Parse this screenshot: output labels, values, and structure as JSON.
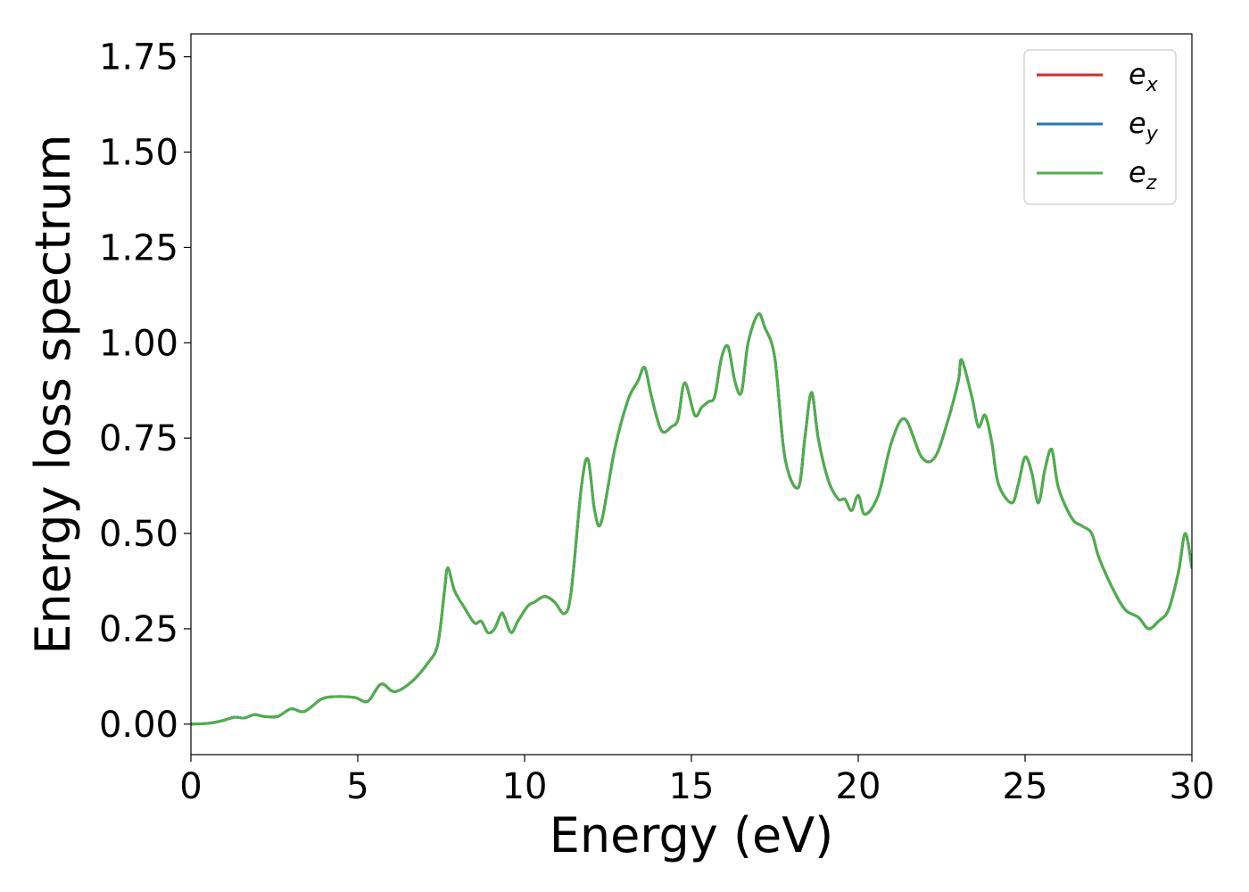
{
  "chart_data": {
    "type": "line",
    "xlabel": "Energy (eV)",
    "ylabel": "Energy loss spectrum",
    "xlim": [
      0,
      30
    ],
    "ylim": [
      -0.08,
      1.81
    ],
    "xticks": [
      0,
      5,
      10,
      15,
      20,
      25,
      30
    ],
    "xtick_labels": [
      "0",
      "5",
      "10",
      "15",
      "20",
      "25",
      "30"
    ],
    "yticks": [
      0,
      0.25,
      0.5,
      0.75,
      1.0,
      1.25,
      1.5,
      1.75
    ],
    "ytick_labels": [
      "0.00",
      "0.25",
      "0.50",
      "0.75",
      "1.00",
      "1.25",
      "1.50",
      "1.75"
    ],
    "grid": false,
    "legend_position": "top-right",
    "legend": [
      {
        "base": "e",
        "sub": "x",
        "color": "#d62728"
      },
      {
        "base": "e",
        "sub": "y",
        "color": "#1f77b4"
      },
      {
        "base": "e",
        "sub": "z",
        "color": "#4daf4a"
      }
    ],
    "x": [
      0,
      0.5,
      0.9,
      1.3,
      1.6,
      1.9,
      2.2,
      2.6,
      3.0,
      3.4,
      3.9,
      4.3,
      4.9,
      5.3,
      5.7,
      6.1,
      6.6,
      7.1,
      7.4,
      7.6,
      7.7,
      7.9,
      8.2,
      8.5,
      8.7,
      8.9,
      9.1,
      9.3,
      9.4,
      9.6,
      9.8,
      10.1,
      10.3,
      10.6,
      10.9,
      11.2,
      11.4,
      11.7,
      11.9,
      12.1,
      12.3,
      12.7,
      13.1,
      13.4,
      13.6,
      13.8,
      14.1,
      14.4,
      14.6,
      14.8,
      15.1,
      15.3,
      15.5,
      15.7,
      15.9,
      16.1,
      16.3,
      16.5,
      16.7,
      17.0,
      17.2,
      17.5,
      17.8,
      18.2,
      18.4,
      18.6,
      18.8,
      19.1,
      19.4,
      19.6,
      19.8,
      20.0,
      20.2,
      20.6,
      21.0,
      21.4,
      21.9,
      22.3,
      22.7,
      23.0,
      23.1,
      23.4,
      23.6,
      23.8,
      24.0,
      24.2,
      24.6,
      24.8,
      25.0,
      25.2,
      25.4,
      25.6,
      25.8,
      26.0,
      26.4,
      26.7,
      27.0,
      27.2,
      27.6,
      28.0,
      28.4,
      28.7,
      29.0,
      29.3,
      29.6,
      29.8,
      30.0
    ],
    "series": [
      {
        "name": "e_x",
        "color": "#d62728",
        "values": [
          0,
          0.002,
          0.008,
          0.018,
          0.016,
          0.025,
          0.02,
          0.02,
          0.04,
          0.033,
          0.065,
          0.072,
          0.07,
          0.06,
          0.105,
          0.085,
          0.11,
          0.16,
          0.21,
          0.35,
          0.41,
          0.35,
          0.305,
          0.265,
          0.27,
          0.24,
          0.25,
          0.29,
          0.28,
          0.24,
          0.27,
          0.31,
          0.32,
          0.335,
          0.32,
          0.29,
          0.35,
          0.62,
          0.695,
          0.56,
          0.53,
          0.72,
          0.85,
          0.9,
          0.935,
          0.86,
          0.77,
          0.78,
          0.8,
          0.895,
          0.81,
          0.83,
          0.845,
          0.86,
          0.96,
          0.99,
          0.9,
          0.87,
          1.0,
          1.075,
          1.04,
          0.96,
          0.7,
          0.62,
          0.75,
          0.87,
          0.75,
          0.64,
          0.59,
          0.59,
          0.56,
          0.6,
          0.55,
          0.6,
          0.74,
          0.8,
          0.7,
          0.7,
          0.8,
          0.9,
          0.955,
          0.86,
          0.78,
          0.81,
          0.74,
          0.63,
          0.58,
          0.63,
          0.7,
          0.66,
          0.58,
          0.67,
          0.72,
          0.62,
          0.54,
          0.52,
          0.5,
          0.44,
          0.36,
          0.3,
          0.28,
          0.25,
          0.27,
          0.3,
          0.4,
          0.5,
          0.41
        ]
      },
      {
        "name": "e_y",
        "color": "#1f77b4",
        "values": [
          0,
          0.002,
          0.008,
          0.018,
          0.016,
          0.025,
          0.02,
          0.02,
          0.04,
          0.033,
          0.065,
          0.072,
          0.07,
          0.06,
          0.105,
          0.085,
          0.11,
          0.16,
          0.21,
          0.35,
          0.41,
          0.35,
          0.305,
          0.265,
          0.27,
          0.24,
          0.25,
          0.29,
          0.28,
          0.24,
          0.27,
          0.31,
          0.32,
          0.335,
          0.32,
          0.29,
          0.35,
          0.62,
          0.695,
          0.56,
          0.53,
          0.72,
          0.85,
          0.9,
          0.935,
          0.86,
          0.77,
          0.78,
          0.8,
          0.895,
          0.81,
          0.83,
          0.845,
          0.86,
          0.96,
          0.99,
          0.9,
          0.87,
          1.0,
          1.075,
          1.04,
          0.96,
          0.7,
          0.62,
          0.75,
          0.87,
          0.75,
          0.64,
          0.59,
          0.59,
          0.56,
          0.6,
          0.55,
          0.6,
          0.74,
          0.8,
          0.7,
          0.7,
          0.8,
          0.9,
          0.955,
          0.86,
          0.78,
          0.81,
          0.74,
          0.63,
          0.58,
          0.63,
          0.7,
          0.66,
          0.58,
          0.67,
          0.72,
          0.62,
          0.54,
          0.52,
          0.5,
          0.44,
          0.36,
          0.3,
          0.28,
          0.25,
          0.27,
          0.3,
          0.4,
          0.5,
          0.41
        ]
      },
      {
        "name": "e_z",
        "color": "#4daf4a",
        "values": [
          0,
          0.002,
          0.008,
          0.018,
          0.016,
          0.025,
          0.02,
          0.02,
          0.04,
          0.033,
          0.065,
          0.072,
          0.07,
          0.06,
          0.105,
          0.085,
          0.11,
          0.16,
          0.21,
          0.35,
          0.41,
          0.35,
          0.305,
          0.265,
          0.27,
          0.24,
          0.25,
          0.29,
          0.28,
          0.24,
          0.27,
          0.31,
          0.32,
          0.335,
          0.32,
          0.29,
          0.35,
          0.62,
          0.695,
          0.56,
          0.53,
          0.72,
          0.85,
          0.9,
          0.935,
          0.86,
          0.77,
          0.78,
          0.8,
          0.895,
          0.81,
          0.83,
          0.845,
          0.86,
          0.96,
          0.99,
          0.9,
          0.87,
          1.0,
          1.075,
          1.04,
          0.96,
          0.7,
          0.62,
          0.75,
          0.87,
          0.75,
          0.64,
          0.59,
          0.59,
          0.56,
          0.6,
          0.55,
          0.6,
          0.74,
          0.8,
          0.7,
          0.7,
          0.8,
          0.9,
          0.955,
          0.86,
          0.78,
          0.81,
          0.74,
          0.63,
          0.58,
          0.63,
          0.7,
          0.66,
          0.58,
          0.67,
          0.72,
          0.62,
          0.54,
          0.52,
          0.5,
          0.44,
          0.36,
          0.3,
          0.28,
          0.25,
          0.27,
          0.3,
          0.4,
          0.5,
          0.41
        ]
      }
    ]
  }
}
